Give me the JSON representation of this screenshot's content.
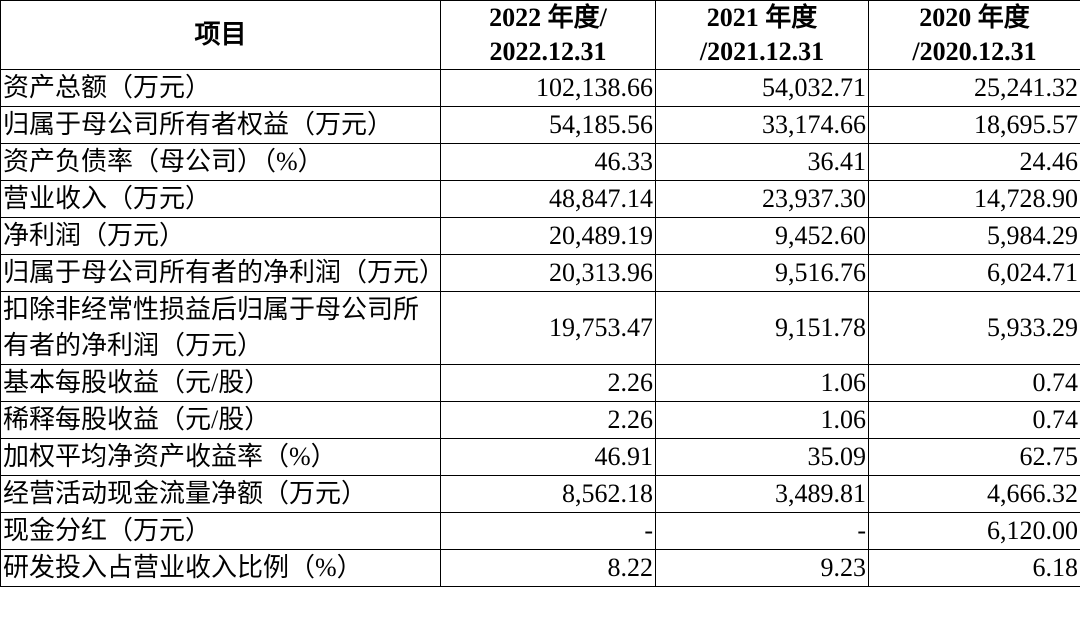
{
  "table": {
    "header": [
      "项目",
      [
        "2022 年度/",
        "2022.12.31"
      ],
      [
        "2021 年度",
        "/2021.12.31"
      ],
      [
        "2020 年度",
        "/2020.12.31"
      ]
    ],
    "rows": [
      [
        "资产总额（万元）",
        "102,138.66",
        "54,032.71",
        "25,241.32"
      ],
      [
        "归属于母公司所有者权益（万元）",
        "54,185.56",
        "33,174.66",
        "18,695.57"
      ],
      [
        "资产负债率（母公司）（%）",
        "46.33",
        "36.41",
        "24.46"
      ],
      [
        "营业收入（万元）",
        "48,847.14",
        "23,937.30",
        "14,728.90"
      ],
      [
        "净利润（万元）",
        "20,489.19",
        "9,452.60",
        "5,984.29"
      ],
      [
        "归属于母公司所有者的净利润（万元）",
        "20,313.96",
        "9,516.76",
        "6,024.71"
      ],
      [
        "扣除非经常性损益后归属于母公司所有者的净利润（万元）",
        "19,753.47",
        "9,151.78",
        "5,933.29"
      ],
      [
        "基本每股收益（元/股）",
        "2.26",
        "1.06",
        "0.74"
      ],
      [
        "稀释每股收益（元/股）",
        "2.26",
        "1.06",
        "0.74"
      ],
      [
        "加权平均净资产收益率（%）",
        "46.91",
        "35.09",
        "62.75"
      ],
      [
        "经营活动现金流量净额（万元）",
        "8,562.18",
        "3,489.81",
        "4,666.32"
      ],
      [
        "现金分红（万元）",
        "-",
        "-",
        "6,120.00"
      ],
      [
        "研发投入占营业收入比例（%）",
        "8.22",
        "9.23",
        "6.18"
      ]
    ]
  }
}
